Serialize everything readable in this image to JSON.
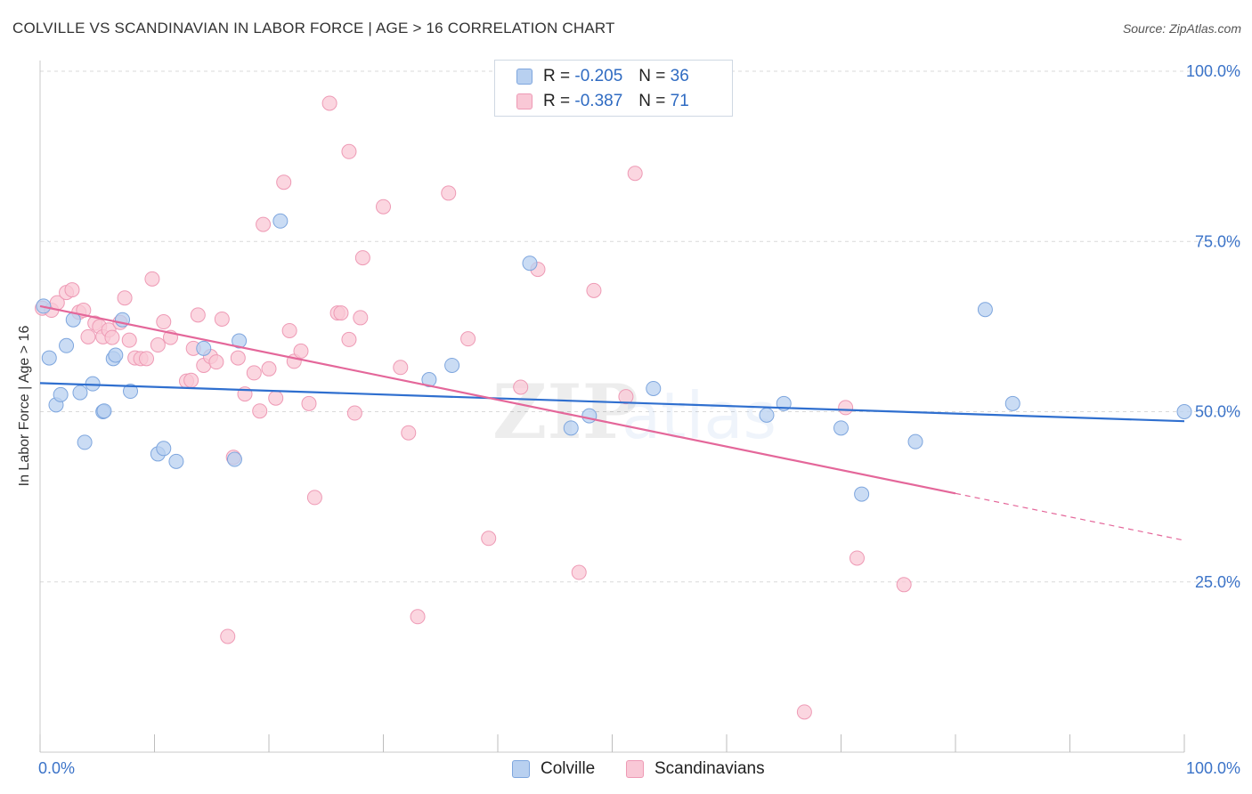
{
  "header": {
    "title": "COLVILLE VS SCANDINAVIAN IN LABOR FORCE | AGE > 16 CORRELATION CHART",
    "source": "Source: ZipAtlas.com"
  },
  "stats": {
    "colville": {
      "r_label": "R =",
      "r_value": "-0.205",
      "n_label": "N =",
      "n_value": "36"
    },
    "scandinavians": {
      "r_label": "R =",
      "r_value": "-0.387",
      "n_label": "N =",
      "n_value": "71"
    }
  },
  "legend": {
    "colville": "Colville",
    "scandinavians": "Scandinavians"
  },
  "colors": {
    "colville_fill": "#b8d0f0",
    "colville_stroke": "#7ea6de",
    "colville_line": "#2f6fcf",
    "scandinavians_fill": "#f9c8d6",
    "scandinavians_stroke": "#ee9ab5",
    "scandinavians_line": "#e4679a",
    "tick_label": "#3b73c8",
    "grid": "#d9d9d9"
  },
  "chart_data": {
    "type": "scatter",
    "title": "COLVILLE VS SCANDINAVIAN IN LABOR FORCE | AGE > 16 CORRELATION CHART",
    "xlabel": "",
    "ylabel": "In Labor Force | Age > 16",
    "xlim": [
      0,
      100
    ],
    "ylim": [
      0,
      105
    ],
    "x_tick_labels": [
      "0.0%",
      "100.0%"
    ],
    "y_ticks": [
      25,
      50,
      75,
      100
    ],
    "y_tick_labels": [
      "25.0%",
      "50.0%",
      "75.0%",
      "100.0%"
    ],
    "grid": true,
    "legend_position": "bottom",
    "watermark": "ZIPatlas",
    "series": [
      {
        "name": "Colville",
        "points": [
          [
            0.3,
            65.5
          ],
          [
            0.8,
            57.9
          ],
          [
            1.4,
            51.0
          ],
          [
            1.8,
            52.5
          ],
          [
            2.3,
            59.7
          ],
          [
            2.9,
            63.5
          ],
          [
            3.5,
            52.8
          ],
          [
            3.9,
            45.5
          ],
          [
            4.6,
            54.1
          ],
          [
            5.5,
            50.0
          ],
          [
            5.6,
            50.1
          ],
          [
            6.4,
            57.8
          ],
          [
            6.6,
            58.3
          ],
          [
            7.2,
            63.5
          ],
          [
            7.9,
            53.0
          ],
          [
            10.3,
            43.8
          ],
          [
            10.8,
            44.6
          ],
          [
            11.9,
            42.7
          ],
          [
            14.3,
            59.3
          ],
          [
            17.0,
            43.0
          ],
          [
            17.4,
            60.4
          ],
          [
            34.0,
            54.7
          ],
          [
            36.0,
            56.8
          ],
          [
            42.8,
            71.8
          ],
          [
            46.4,
            47.6
          ],
          [
            48.0,
            49.4
          ],
          [
            53.6,
            53.4
          ],
          [
            63.5,
            49.5
          ],
          [
            65.0,
            51.2
          ],
          [
            70.0,
            47.6
          ],
          [
            71.8,
            37.9
          ],
          [
            76.5,
            45.6
          ],
          [
            82.6,
            65.0
          ],
          [
            85.0,
            51.2
          ],
          [
            100.0,
            50.0
          ],
          [
            21.0,
            78.0
          ]
        ],
        "trend": {
          "x": [
            0,
            100
          ],
          "y": [
            54.2,
            48.6
          ]
        }
      },
      {
        "name": "Scandinavians",
        "points": [
          [
            0.2,
            65.2
          ],
          [
            1.0,
            64.9
          ],
          [
            1.5,
            66.0
          ],
          [
            2.3,
            67.5
          ],
          [
            2.8,
            67.9
          ],
          [
            3.4,
            64.6
          ],
          [
            3.8,
            64.9
          ],
          [
            4.2,
            61.0
          ],
          [
            4.8,
            63.0
          ],
          [
            5.2,
            62.5
          ],
          [
            5.5,
            61.0
          ],
          [
            6.0,
            62.0
          ],
          [
            6.3,
            60.9
          ],
          [
            7.0,
            63.1
          ],
          [
            7.4,
            66.7
          ],
          [
            7.8,
            60.5
          ],
          [
            8.3,
            57.9
          ],
          [
            8.8,
            57.8
          ],
          [
            9.3,
            57.8
          ],
          [
            9.8,
            69.5
          ],
          [
            10.3,
            59.8
          ],
          [
            10.8,
            63.2
          ],
          [
            11.4,
            60.9
          ],
          [
            12.8,
            54.5
          ],
          [
            13.2,
            54.6
          ],
          [
            13.4,
            59.3
          ],
          [
            13.8,
            64.2
          ],
          [
            14.3,
            56.8
          ],
          [
            14.9,
            58.1
          ],
          [
            15.4,
            57.3
          ],
          [
            15.9,
            63.6
          ],
          [
            16.4,
            17.0
          ],
          [
            16.9,
            43.3
          ],
          [
            17.3,
            57.9
          ],
          [
            17.9,
            52.6
          ],
          [
            18.7,
            55.7
          ],
          [
            19.2,
            50.1
          ],
          [
            19.5,
            77.5
          ],
          [
            20.0,
            56.3
          ],
          [
            20.6,
            52.0
          ],
          [
            21.3,
            83.7
          ],
          [
            21.8,
            61.9
          ],
          [
            22.2,
            57.4
          ],
          [
            22.8,
            58.9
          ],
          [
            23.5,
            51.2
          ],
          [
            24.0,
            37.4
          ],
          [
            26.0,
            64.5
          ],
          [
            26.3,
            64.5
          ],
          [
            27.0,
            60.6
          ],
          [
            27.5,
            49.8
          ],
          [
            28.0,
            63.8
          ],
          [
            28.2,
            72.6
          ],
          [
            30.0,
            80.1
          ],
          [
            31.5,
            56.5
          ],
          [
            32.2,
            46.9
          ],
          [
            33.0,
            19.9
          ],
          [
            35.7,
            82.1
          ],
          [
            37.4,
            60.7
          ],
          [
            39.2,
            31.4
          ],
          [
            42.0,
            53.6
          ],
          [
            43.5,
            70.9
          ],
          [
            47.1,
            26.4
          ],
          [
            48.4,
            67.8
          ],
          [
            51.2,
            52.2
          ],
          [
            52.0,
            85.0
          ],
          [
            66.8,
            5.9
          ],
          [
            70.4,
            50.6
          ],
          [
            71.4,
            28.5
          ],
          [
            75.5,
            24.6
          ],
          [
            25.3,
            95.3
          ],
          [
            27.0,
            88.2
          ]
        ],
        "trend": {
          "x": [
            0,
            80
          ],
          "y": [
            65.5,
            38.0
          ]
        },
        "trend_dashed": {
          "x": [
            80,
            100
          ],
          "y": [
            38.0,
            31.1
          ]
        }
      }
    ]
  }
}
